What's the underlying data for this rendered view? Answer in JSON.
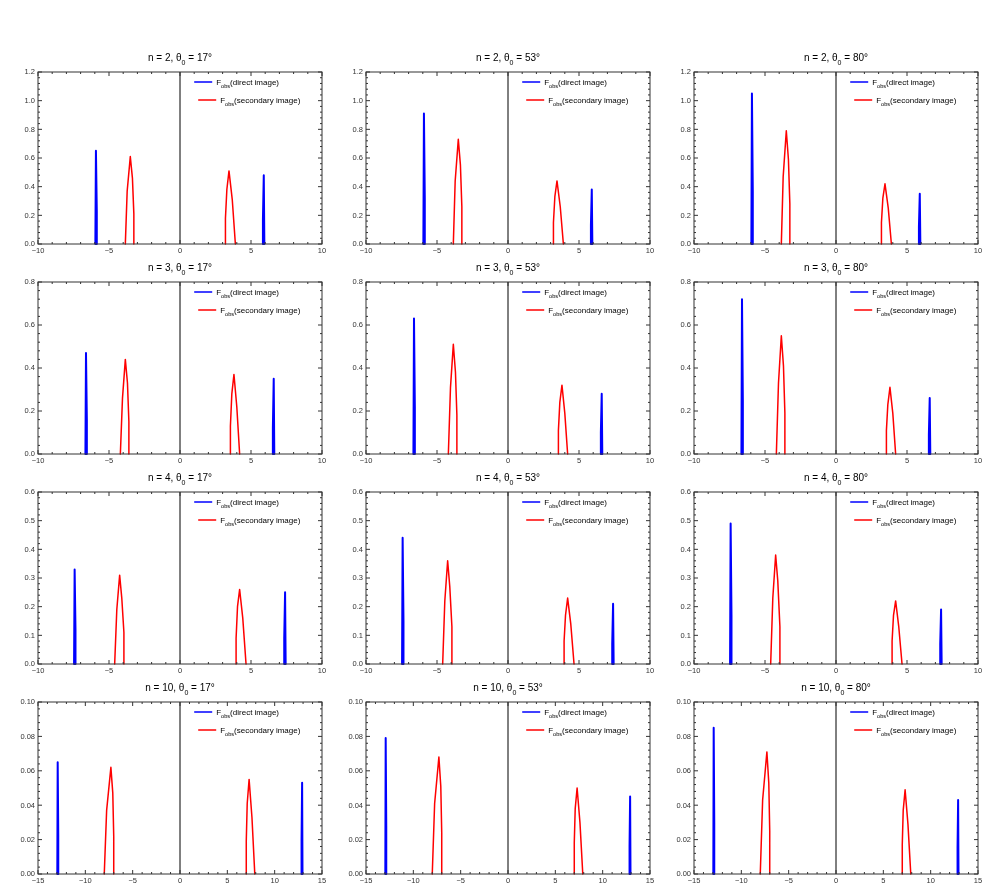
{
  "chart_data": [
    {
      "type": "line",
      "title": "n = 2, θ$_{0}$ = 17°",
      "xlim": [
        -10,
        10
      ],
      "xticks": [
        -10,
        -5,
        0,
        5,
        10
      ],
      "ylim": [
        0,
        1.2
      ],
      "yticks": [
        {
          "value": 0,
          "label": "0.0"
        },
        {
          "value": 0.2,
          "label": "0.2"
        },
        {
          "value": 0.4,
          "label": "0.4"
        },
        {
          "value": 0.6,
          "label": "0.6"
        },
        {
          "value": 0.8,
          "label": "0.8"
        },
        {
          "value": 1,
          "label": "1.0"
        },
        {
          "value": 1.2,
          "label": "1.2"
        }
      ],
      "legend": "top right",
      "ref_lines": [
        {
          "axis": "x",
          "value": 0,
          "color": "#000000"
        }
      ],
      "series": [
        {
          "name": "F$_{obs}$(direct image)",
          "color": "#0000ff",
          "x": [
            -5.96,
            -5.92,
            -5.86,
            -5.86,
            0,
            5.84,
            5.84,
            5.9,
            5.94
          ],
          "values": [
            0,
            0.65,
            0.23,
            0,
            null,
            0,
            0.17,
            0.48,
            0
          ]
        },
        {
          "name": "F$_{obs}$(secondary image)",
          "color": "#ff0000",
          "x": [
            -3.85,
            -3.72,
            -3.5,
            -3.35,
            -3.25,
            -3.25,
            0,
            3.2,
            3.2,
            3.3,
            3.45,
            3.68,
            3.9
          ],
          "values": [
            0,
            0.37,
            0.61,
            0.46,
            0.21,
            0,
            null,
            0,
            0.18,
            0.38,
            0.51,
            0.31,
            0
          ]
        }
      ]
    },
    {
      "type": "line",
      "title": "n = 2, θ$_{0}$ = 53°",
      "xlim": [
        -10,
        10
      ],
      "xticks": [
        -10,
        -5,
        0,
        5,
        10
      ],
      "ylim": [
        0,
        1.2
      ],
      "yticks": [
        {
          "value": 0,
          "label": "0.0"
        },
        {
          "value": 0.2,
          "label": "0.2"
        },
        {
          "value": 0.4,
          "label": "0.4"
        },
        {
          "value": 0.6,
          "label": "0.6"
        },
        {
          "value": 0.8,
          "label": "0.8"
        },
        {
          "value": 1,
          "label": "1.0"
        },
        {
          "value": 1.2,
          "label": "1.2"
        }
      ],
      "legend": "top right",
      "ref_lines": [
        {
          "axis": "x",
          "value": 0,
          "color": "#000000"
        }
      ],
      "series": [
        {
          "name": "F$_{obs}$(direct image)",
          "color": "#0000ff",
          "x": [
            -5.96,
            -5.92,
            -5.86,
            -5.86,
            0,
            5.84,
            5.84,
            5.9,
            5.94
          ],
          "values": [
            0,
            0.91,
            0.32,
            0,
            null,
            0,
            0.13,
            0.38,
            0
          ]
        },
        {
          "name": "F$_{obs}$(secondary image)",
          "color": "#ff0000",
          "x": [
            -3.85,
            -3.72,
            -3.5,
            -3.35,
            -3.25,
            -3.25,
            0,
            3.2,
            3.2,
            3.3,
            3.45,
            3.68,
            3.9
          ],
          "values": [
            0,
            0.44,
            0.73,
            0.55,
            0.26,
            0,
            null,
            0,
            0.15,
            0.33,
            0.44,
            0.26,
            0
          ]
        }
      ]
    },
    {
      "type": "line",
      "title": "n = 2, θ$_{0}$ = 80°",
      "xlim": [
        -10,
        10
      ],
      "xticks": [
        -10,
        -5,
        0,
        5,
        10
      ],
      "ylim": [
        0,
        1.2
      ],
      "yticks": [
        {
          "value": 0,
          "label": "0.0"
        },
        {
          "value": 0.2,
          "label": "0.2"
        },
        {
          "value": 0.4,
          "label": "0.4"
        },
        {
          "value": 0.6,
          "label": "0.6"
        },
        {
          "value": 0.8,
          "label": "0.8"
        },
        {
          "value": 1,
          "label": "1.0"
        },
        {
          "value": 1.2,
          "label": "1.2"
        }
      ],
      "legend": "top right",
      "ref_lines": [
        {
          "axis": "x",
          "value": 0,
          "color": "#000000"
        }
      ],
      "series": [
        {
          "name": "F$_{obs}$(direct image)",
          "color": "#0000ff",
          "x": [
            -5.96,
            -5.92,
            -5.86,
            -5.86,
            0,
            5.84,
            5.84,
            5.9,
            5.94
          ],
          "values": [
            0,
            1.05,
            0.37,
            0,
            null,
            0,
            0.12,
            0.35,
            0
          ]
        },
        {
          "name": "F$_{obs}$(secondary image)",
          "color": "#ff0000",
          "x": [
            -3.85,
            -3.72,
            -3.5,
            -3.35,
            -3.25,
            -3.25,
            0,
            3.2,
            3.2,
            3.3,
            3.45,
            3.68,
            3.9
          ],
          "values": [
            0,
            0.47,
            0.79,
            0.59,
            0.28,
            0,
            null,
            0,
            0.15,
            0.32,
            0.42,
            0.25,
            0
          ]
        }
      ]
    },
    {
      "type": "line",
      "title": "n = 3, θ$_{0}$ = 17°",
      "xlim": [
        -10,
        10
      ],
      "xticks": [
        -10,
        -5,
        0,
        5,
        10
      ],
      "ylim": [
        0,
        0.8
      ],
      "yticks": [
        {
          "value": 0,
          "label": "0.0"
        },
        {
          "value": 0.2,
          "label": "0.2"
        },
        {
          "value": 0.4,
          "label": "0.4"
        },
        {
          "value": 0.6,
          "label": "0.6"
        },
        {
          "value": 0.8,
          "label": "0.8"
        }
      ],
      "legend": "top right",
      "ref_lines": [
        {
          "axis": "x",
          "value": 0,
          "color": "#000000"
        }
      ],
      "series": [
        {
          "name": "F$_{obs}$(direct image)",
          "color": "#0000ff",
          "x": [
            -6.66,
            -6.62,
            -6.56,
            -6.56,
            0,
            6.54,
            6.54,
            6.6,
            6.64
          ],
          "values": [
            0,
            0.47,
            0.16,
            0,
            null,
            0,
            0.12,
            0.35,
            0
          ]
        },
        {
          "name": "F$_{obs}$(secondary image)",
          "color": "#ff0000",
          "x": [
            -4.2,
            -4.05,
            -3.85,
            -3.7,
            -3.6,
            -3.6,
            0,
            3.55,
            3.55,
            3.65,
            3.8,
            4.0,
            4.2
          ],
          "values": [
            0,
            0.26,
            0.44,
            0.33,
            0.15,
            0,
            null,
            0,
            0.13,
            0.28,
            0.37,
            0.22,
            0
          ]
        }
      ]
    },
    {
      "type": "line",
      "title": "n = 3, θ$_{0}$ = 53°",
      "xlim": [
        -10,
        10
      ],
      "xticks": [
        -10,
        -5,
        0,
        5,
        10
      ],
      "ylim": [
        0,
        0.8
      ],
      "yticks": [
        {
          "value": 0,
          "label": "0.0"
        },
        {
          "value": 0.2,
          "label": "0.2"
        },
        {
          "value": 0.4,
          "label": "0.4"
        },
        {
          "value": 0.6,
          "label": "0.6"
        },
        {
          "value": 0.8,
          "label": "0.8"
        }
      ],
      "legend": "top right",
      "ref_lines": [
        {
          "axis": "x",
          "value": 0,
          "color": "#000000"
        }
      ],
      "series": [
        {
          "name": "F$_{obs}$(direct image)",
          "color": "#0000ff",
          "x": [
            -6.66,
            -6.62,
            -6.56,
            -6.56,
            0,
            6.54,
            6.54,
            6.6,
            6.64
          ],
          "values": [
            0,
            0.63,
            0.22,
            0,
            null,
            0,
            0.1,
            0.28,
            0
          ]
        },
        {
          "name": "F$_{obs}$(secondary image)",
          "color": "#ff0000",
          "x": [
            -4.2,
            -4.05,
            -3.85,
            -3.7,
            -3.6,
            -3.6,
            0,
            3.55,
            3.55,
            3.65,
            3.8,
            4.0,
            4.2
          ],
          "values": [
            0,
            0.31,
            0.51,
            0.38,
            0.18,
            0,
            null,
            0,
            0.11,
            0.24,
            0.32,
            0.19,
            0
          ]
        }
      ]
    },
    {
      "type": "line",
      "title": "n = 3, θ$_{0}$ = 80°",
      "xlim": [
        -10,
        10
      ],
      "xticks": [
        -10,
        -5,
        0,
        5,
        10
      ],
      "ylim": [
        0,
        0.8
      ],
      "yticks": [
        {
          "value": 0,
          "label": "0.0"
        },
        {
          "value": 0.2,
          "label": "0.2"
        },
        {
          "value": 0.4,
          "label": "0.4"
        },
        {
          "value": 0.6,
          "label": "0.6"
        },
        {
          "value": 0.8,
          "label": "0.8"
        }
      ],
      "legend": "top right",
      "ref_lines": [
        {
          "axis": "x",
          "value": 0,
          "color": "#000000"
        }
      ],
      "series": [
        {
          "name": "F$_{obs}$(direct image)",
          "color": "#0000ff",
          "x": [
            -6.66,
            -6.62,
            -6.56,
            -6.56,
            0,
            6.54,
            6.54,
            6.6,
            6.64
          ],
          "values": [
            0,
            0.72,
            0.25,
            0,
            null,
            0,
            0.09,
            0.26,
            0
          ]
        },
        {
          "name": "F$_{obs}$(secondary image)",
          "color": "#ff0000",
          "x": [
            -4.2,
            -4.05,
            -3.85,
            -3.7,
            -3.6,
            -3.6,
            0,
            3.55,
            3.55,
            3.65,
            3.8,
            4.0,
            4.2
          ],
          "values": [
            0,
            0.33,
            0.55,
            0.41,
            0.19,
            0,
            null,
            0,
            0.11,
            0.23,
            0.31,
            0.19,
            0
          ]
        }
      ]
    },
    {
      "type": "line",
      "title": "n = 4, θ$_{0}$ = 17°",
      "xlim": [
        -10,
        10
      ],
      "xticks": [
        -10,
        -5,
        0,
        5,
        10
      ],
      "ylim": [
        0,
        0.6
      ],
      "yticks": [
        {
          "value": 0,
          "label": "0.0"
        },
        {
          "value": 0.1,
          "label": "0.1"
        },
        {
          "value": 0.2,
          "label": "0.2"
        },
        {
          "value": 0.3,
          "label": "0.3"
        },
        {
          "value": 0.4,
          "label": "0.4"
        },
        {
          "value": 0.5,
          "label": "0.5"
        },
        {
          "value": 0.6,
          "label": "0.6"
        }
      ],
      "legend": "top right",
      "ref_lines": [
        {
          "axis": "x",
          "value": 0,
          "color": "#000000"
        }
      ],
      "series": [
        {
          "name": "F$_{obs}$(direct image)",
          "color": "#0000ff",
          "x": [
            -7.46,
            -7.42,
            -7.36,
            -7.36,
            0,
            7.34,
            7.34,
            7.4,
            7.44
          ],
          "values": [
            0,
            0.33,
            0.12,
            0,
            null,
            0,
            0.09,
            0.25,
            0
          ]
        },
        {
          "name": "F$_{obs}$(secondary image)",
          "color": "#ff0000",
          "x": [
            -4.6,
            -4.45,
            -4.25,
            -4.1,
            -3.95,
            -3.95,
            0,
            3.95,
            3.95,
            4.05,
            4.2,
            4.42,
            4.65
          ],
          "values": [
            0,
            0.19,
            0.31,
            0.23,
            0.11,
            0,
            null,
            0,
            0.09,
            0.2,
            0.26,
            0.16,
            0
          ]
        }
      ]
    },
    {
      "type": "line",
      "title": "n = 4, θ$_{0}$ = 53°",
      "xlim": [
        -10,
        10
      ],
      "xticks": [
        -10,
        -5,
        0,
        5,
        10
      ],
      "ylim": [
        0,
        0.6
      ],
      "yticks": [
        {
          "value": 0,
          "label": "0.0"
        },
        {
          "value": 0.1,
          "label": "0.1"
        },
        {
          "value": 0.2,
          "label": "0.2"
        },
        {
          "value": 0.3,
          "label": "0.3"
        },
        {
          "value": 0.4,
          "label": "0.4"
        },
        {
          "value": 0.5,
          "label": "0.5"
        },
        {
          "value": 0.6,
          "label": "0.6"
        }
      ],
      "legend": "top right",
      "ref_lines": [
        {
          "axis": "x",
          "value": 0,
          "color": "#000000"
        }
      ],
      "series": [
        {
          "name": "F$_{obs}$(direct image)",
          "color": "#0000ff",
          "x": [
            -7.46,
            -7.42,
            -7.36,
            -7.36,
            0,
            7.34,
            7.34,
            7.4,
            7.44
          ],
          "values": [
            0,
            0.44,
            0.15,
            0,
            null,
            0,
            0.07,
            0.21,
            0
          ]
        },
        {
          "name": "F$_{obs}$(secondary image)",
          "color": "#ff0000",
          "x": [
            -4.6,
            -4.45,
            -4.25,
            -4.1,
            -3.95,
            -3.95,
            0,
            3.95,
            3.95,
            4.05,
            4.2,
            4.42,
            4.65
          ],
          "values": [
            0,
            0.22,
            0.36,
            0.27,
            0.13,
            0,
            null,
            0,
            0.08,
            0.17,
            0.23,
            0.14,
            0
          ]
        }
      ]
    },
    {
      "type": "line",
      "title": "n = 4, θ$_{0}$ = 80°",
      "xlim": [
        -10,
        10
      ],
      "xticks": [
        -10,
        -5,
        0,
        5,
        10
      ],
      "ylim": [
        0,
        0.6
      ],
      "yticks": [
        {
          "value": 0,
          "label": "0.0"
        },
        {
          "value": 0.1,
          "label": "0.1"
        },
        {
          "value": 0.2,
          "label": "0.2"
        },
        {
          "value": 0.3,
          "label": "0.3"
        },
        {
          "value": 0.4,
          "label": "0.4"
        },
        {
          "value": 0.5,
          "label": "0.5"
        },
        {
          "value": 0.6,
          "label": "0.6"
        }
      ],
      "legend": "top right",
      "ref_lines": [
        {
          "axis": "x",
          "value": 0,
          "color": "#000000"
        }
      ],
      "series": [
        {
          "name": "F$_{obs}$(direct image)",
          "color": "#0000ff",
          "x": [
            -7.46,
            -7.42,
            -7.36,
            -7.36,
            0,
            7.34,
            7.34,
            7.4,
            7.44
          ],
          "values": [
            0,
            0.49,
            0.17,
            0,
            null,
            0,
            0.07,
            0.19,
            0
          ]
        },
        {
          "name": "F$_{obs}$(secondary image)",
          "color": "#ff0000",
          "x": [
            -4.6,
            -4.45,
            -4.25,
            -4.1,
            -3.95,
            -3.95,
            0,
            3.95,
            3.95,
            4.05,
            4.2,
            4.42,
            4.65
          ],
          "values": [
            0,
            0.23,
            0.38,
            0.29,
            0.13,
            0,
            null,
            0,
            0.08,
            0.17,
            0.22,
            0.13,
            0
          ]
        }
      ]
    },
    {
      "type": "line",
      "title": "n = 10, θ$_{0}$ = 17°",
      "xlim": [
        -15,
        15
      ],
      "xticks": [
        -15,
        -10,
        -5,
        0,
        5,
        10,
        15
      ],
      "ylim": [
        0,
        0.1
      ],
      "yticks": [
        {
          "value": 0,
          "label": "0.00"
        },
        {
          "value": 0.02,
          "label": "0.02"
        },
        {
          "value": 0.04,
          "label": "0.04"
        },
        {
          "value": 0.06,
          "label": "0.06"
        },
        {
          "value": 0.08,
          "label": "0.08"
        },
        {
          "value": 0.1,
          "label": "0.10"
        }
      ],
      "legend": "top right",
      "ref_lines": [
        {
          "axis": "x",
          "value": 0,
          "color": "#000000"
        }
      ],
      "series": [
        {
          "name": "F$_{obs}$(direct image)",
          "color": "#0000ff",
          "x": [
            -12.96,
            -12.92,
            -12.86,
            -12.86,
            0,
            12.84,
            12.84,
            12.9,
            12.94
          ],
          "values": [
            0,
            0.065,
            0.023,
            0,
            null,
            0,
            0.019,
            0.053,
            0
          ]
        },
        {
          "name": "F$_{obs}$(secondary image)",
          "color": "#ff0000",
          "x": [
            -8.0,
            -7.75,
            -7.3,
            -7.1,
            -7.0,
            -7.0,
            0,
            7.0,
            7.0,
            7.1,
            7.3,
            7.6,
            7.9
          ],
          "values": [
            0,
            0.037,
            0.062,
            0.047,
            0.022,
            0,
            null,
            0,
            0.019,
            0.041,
            0.055,
            0.033,
            0
          ]
        }
      ]
    },
    {
      "type": "line",
      "title": "n = 10, θ$_{0}$ = 53°",
      "xlim": [
        -15,
        15
      ],
      "xticks": [
        -15,
        -10,
        -5,
        0,
        5,
        10,
        15
      ],
      "ylim": [
        0,
        0.1
      ],
      "yticks": [
        {
          "value": 0,
          "label": "0.00"
        },
        {
          "value": 0.02,
          "label": "0.02"
        },
        {
          "value": 0.04,
          "label": "0.04"
        },
        {
          "value": 0.06,
          "label": "0.06"
        },
        {
          "value": 0.08,
          "label": "0.08"
        },
        {
          "value": 0.1,
          "label": "0.10"
        }
      ],
      "legend": "top right",
      "ref_lines": [
        {
          "axis": "x",
          "value": 0,
          "color": "#000000"
        }
      ],
      "series": [
        {
          "name": "F$_{obs}$(direct image)",
          "color": "#0000ff",
          "x": [
            -12.96,
            -12.92,
            -12.86,
            -12.86,
            0,
            12.84,
            12.84,
            12.9,
            12.94
          ],
          "values": [
            0,
            0.079,
            0.028,
            0,
            null,
            0,
            0.016,
            0.045,
            0
          ]
        },
        {
          "name": "F$_{obs}$(secondary image)",
          "color": "#ff0000",
          "x": [
            -8.0,
            -7.75,
            -7.3,
            -7.1,
            -7.0,
            -7.0,
            0,
            7.0,
            7.0,
            7.1,
            7.3,
            7.6,
            7.9
          ],
          "values": [
            0,
            0.041,
            0.068,
            0.051,
            0.024,
            0,
            null,
            0,
            0.018,
            0.038,
            0.05,
            0.03,
            0
          ]
        }
      ]
    },
    {
      "type": "line",
      "title": "n = 10, θ$_{0}$ = 80°",
      "xlim": [
        -15,
        15
      ],
      "xticks": [
        -15,
        -10,
        -5,
        0,
        5,
        10,
        15
      ],
      "ylim": [
        0,
        0.1
      ],
      "yticks": [
        {
          "value": 0,
          "label": "0.00"
        },
        {
          "value": 0.02,
          "label": "0.02"
        },
        {
          "value": 0.04,
          "label": "0.04"
        },
        {
          "value": 0.06,
          "label": "0.06"
        },
        {
          "value": 0.08,
          "label": "0.08"
        },
        {
          "value": 0.1,
          "label": "0.10"
        }
      ],
      "legend": "top right",
      "ref_lines": [
        {
          "axis": "x",
          "value": 0,
          "color": "#000000"
        }
      ],
      "series": [
        {
          "name": "F$_{obs}$(direct image)",
          "color": "#0000ff",
          "x": [
            -12.96,
            -12.92,
            -12.86,
            -12.86,
            0,
            12.84,
            12.84,
            12.9,
            12.94
          ],
          "values": [
            0,
            0.085,
            0.03,
            0,
            null,
            0,
            0.015,
            0.043,
            0
          ]
        },
        {
          "name": "F$_{obs}$(secondary image)",
          "color": "#ff0000",
          "x": [
            -8.0,
            -7.75,
            -7.3,
            -7.1,
            -7.0,
            -7.0,
            0,
            7.0,
            7.0,
            7.1,
            7.3,
            7.6,
            7.9
          ],
          "values": [
            0,
            0.043,
            0.071,
            0.053,
            0.025,
            0,
            null,
            0,
            0.017,
            0.037,
            0.049,
            0.029,
            0
          ]
        }
      ]
    }
  ]
}
